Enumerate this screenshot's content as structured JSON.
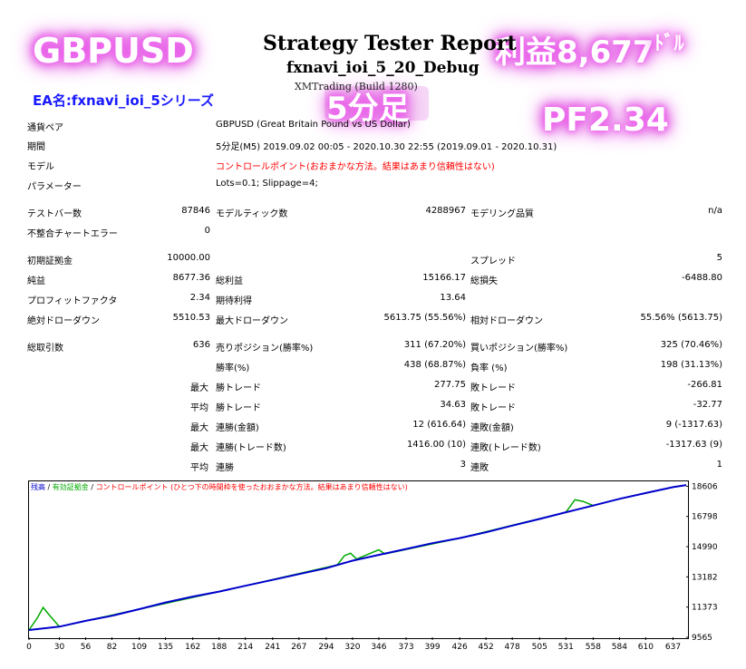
{
  "header": {
    "title": "Strategy Tester Report",
    "ea_file": "fxnavi_ioi_5_20_Debug",
    "broker": "XMTrading (Build 1280)"
  },
  "overlay": {
    "pair": "GBPUSD",
    "profit": "利益8,677",
    "profit_unit": "ﾄﾞﾙ",
    "ea_name": "EA名:fxnavi_ioi_5シリーズ",
    "timeframe": "5分足",
    "pf": "PF2.34"
  },
  "settings": [
    {
      "label": "通貨ペア",
      "value": "GBPUSD (Great Britain Pound vs US Dollar)",
      "red": false
    },
    {
      "label": "期間",
      "value": "5分足(M5) 2019.09.02 00:05 - 2020.10.30 22:55 (2019.09.01 - 2020.10.31)",
      "red": false
    },
    {
      "label": "モデル",
      "value": "コントロールポイント(おおまかな方法。結果はあまり信頼性はない)",
      "red": true
    },
    {
      "label": "パラメーター",
      "value": "Lots=0.1; Slippage=4;",
      "red": false
    }
  ],
  "stats": {
    "bars_label": "テストバー数",
    "bars": "87846",
    "ticks_label": "モデルティック数",
    "ticks": "4288967",
    "quality_label": "モデリング品質",
    "quality": "n/a",
    "mismatch_label": "不整合チャートエラー",
    "mismatch": "0",
    "deposit_label": "初期証拠金",
    "deposit": "10000.00",
    "spread_label": "スプレッド",
    "spread": "5",
    "net_label": "純益",
    "net": "8677.36",
    "gross_profit_label": "総利益",
    "gross_profit": "15166.17",
    "gross_loss_label": "総損失",
    "gross_loss": "-6488.80",
    "pf_label": "プロフィットファクタ",
    "pf": "2.34",
    "expected_label": "期待利得",
    "expected": "13.64",
    "abs_dd_label": "絶対ドローダウン",
    "abs_dd": "5510.53",
    "max_dd_label": "最大ドローダウン",
    "max_dd": "5613.75 (55.56%)",
    "rel_dd_label": "相対ドローダウン",
    "rel_dd": "55.56% (5613.75)",
    "trades_label": "総取引数",
    "trades": "636",
    "short_label": "売りポジション(勝率%)",
    "short": "311 (67.20%)",
    "long_label": "買いポジション(勝率%)",
    "long": "325 (70.46%)",
    "win_label": "勝率(%)",
    "win": "438 (68.87%)",
    "loss_label": "負率 (%)",
    "loss": "198 (31.13%)",
    "max_prefix": "最大",
    "avg_prefix": "平均",
    "largest_win_label": "勝トレード",
    "largest_win": "277.75",
    "largest_loss_label": "敗トレード",
    "largest_loss": "-266.81",
    "avg_win_label": "勝トレード",
    "avg_win": "34.63",
    "avg_loss_label": "敗トレード",
    "avg_loss": "-32.77",
    "cons_wins_label": "連勝(金額)",
    "cons_wins": "12 (616.64)",
    "cons_losses_label": "連敗(金額)",
    "cons_losses": "9 (-1317.63)",
    "cons_profit_label": "連勝(トレード数)",
    "cons_profit": "1416.00 (10)",
    "cons_loss_label": "連敗(トレード数)",
    "cons_loss": "-1317.63 (9)",
    "avg_cons_win_label": "連勝",
    "avg_cons_win": "3",
    "avg_cons_loss_label": "連敗",
    "avg_cons_loss": "1"
  },
  "chart_legend": {
    "balance": "残高",
    "sep1": " / ",
    "equity": "有効証拠金",
    "sep2": " / ",
    "model": "コントロールポイント (ひとつ下の時間枠を使ったおおまかな方法。結果はあまり信頼性はない)"
  },
  "chart_data": {
    "type": "line",
    "x_ticks": [
      0,
      30,
      56,
      82,
      109,
      135,
      162,
      188,
      214,
      241,
      267,
      294,
      320,
      346,
      373,
      399,
      426,
      452,
      478,
      505,
      531,
      558,
      584,
      610,
      637
    ],
    "y_ticks": [
      9565,
      11373,
      13182,
      14990,
      16798,
      18606
    ],
    "xlim": [
      0,
      650
    ],
    "ylim": [
      9565,
      18900
    ],
    "series": [
      {
        "name": "残高",
        "color": "#0000cc",
        "x": [
          0,
          30,
          56,
          82,
          109,
          135,
          162,
          188,
          214,
          241,
          267,
          294,
          320,
          346,
          373,
          399,
          426,
          452,
          478,
          505,
          531,
          558,
          584,
          610,
          637,
          650
        ],
        "y": [
          10000,
          10200,
          10550,
          10850,
          11250,
          11650,
          12000,
          12300,
          12650,
          13000,
          13350,
          13700,
          14150,
          14500,
          14850,
          15200,
          15500,
          15850,
          16250,
          16650,
          17050,
          17450,
          17850,
          18200,
          18550,
          18677
        ]
      },
      {
        "name": "有効証拠金",
        "color": "#00aa00",
        "x": [
          0,
          8,
          14,
          20,
          30,
          56,
          109,
          188,
          214,
          305,
          312,
          318,
          324,
          338,
          346,
          352,
          426,
          531,
          540,
          548,
          558,
          584,
          610,
          637,
          650
        ],
        "y": [
          10000,
          10700,
          11350,
          10900,
          10200,
          10550,
          11250,
          12300,
          12650,
          13900,
          14450,
          14600,
          14250,
          14600,
          14800,
          14550,
          15500,
          17050,
          17800,
          17700,
          17450,
          17850,
          18200,
          18550,
          18677
        ]
      }
    ]
  }
}
